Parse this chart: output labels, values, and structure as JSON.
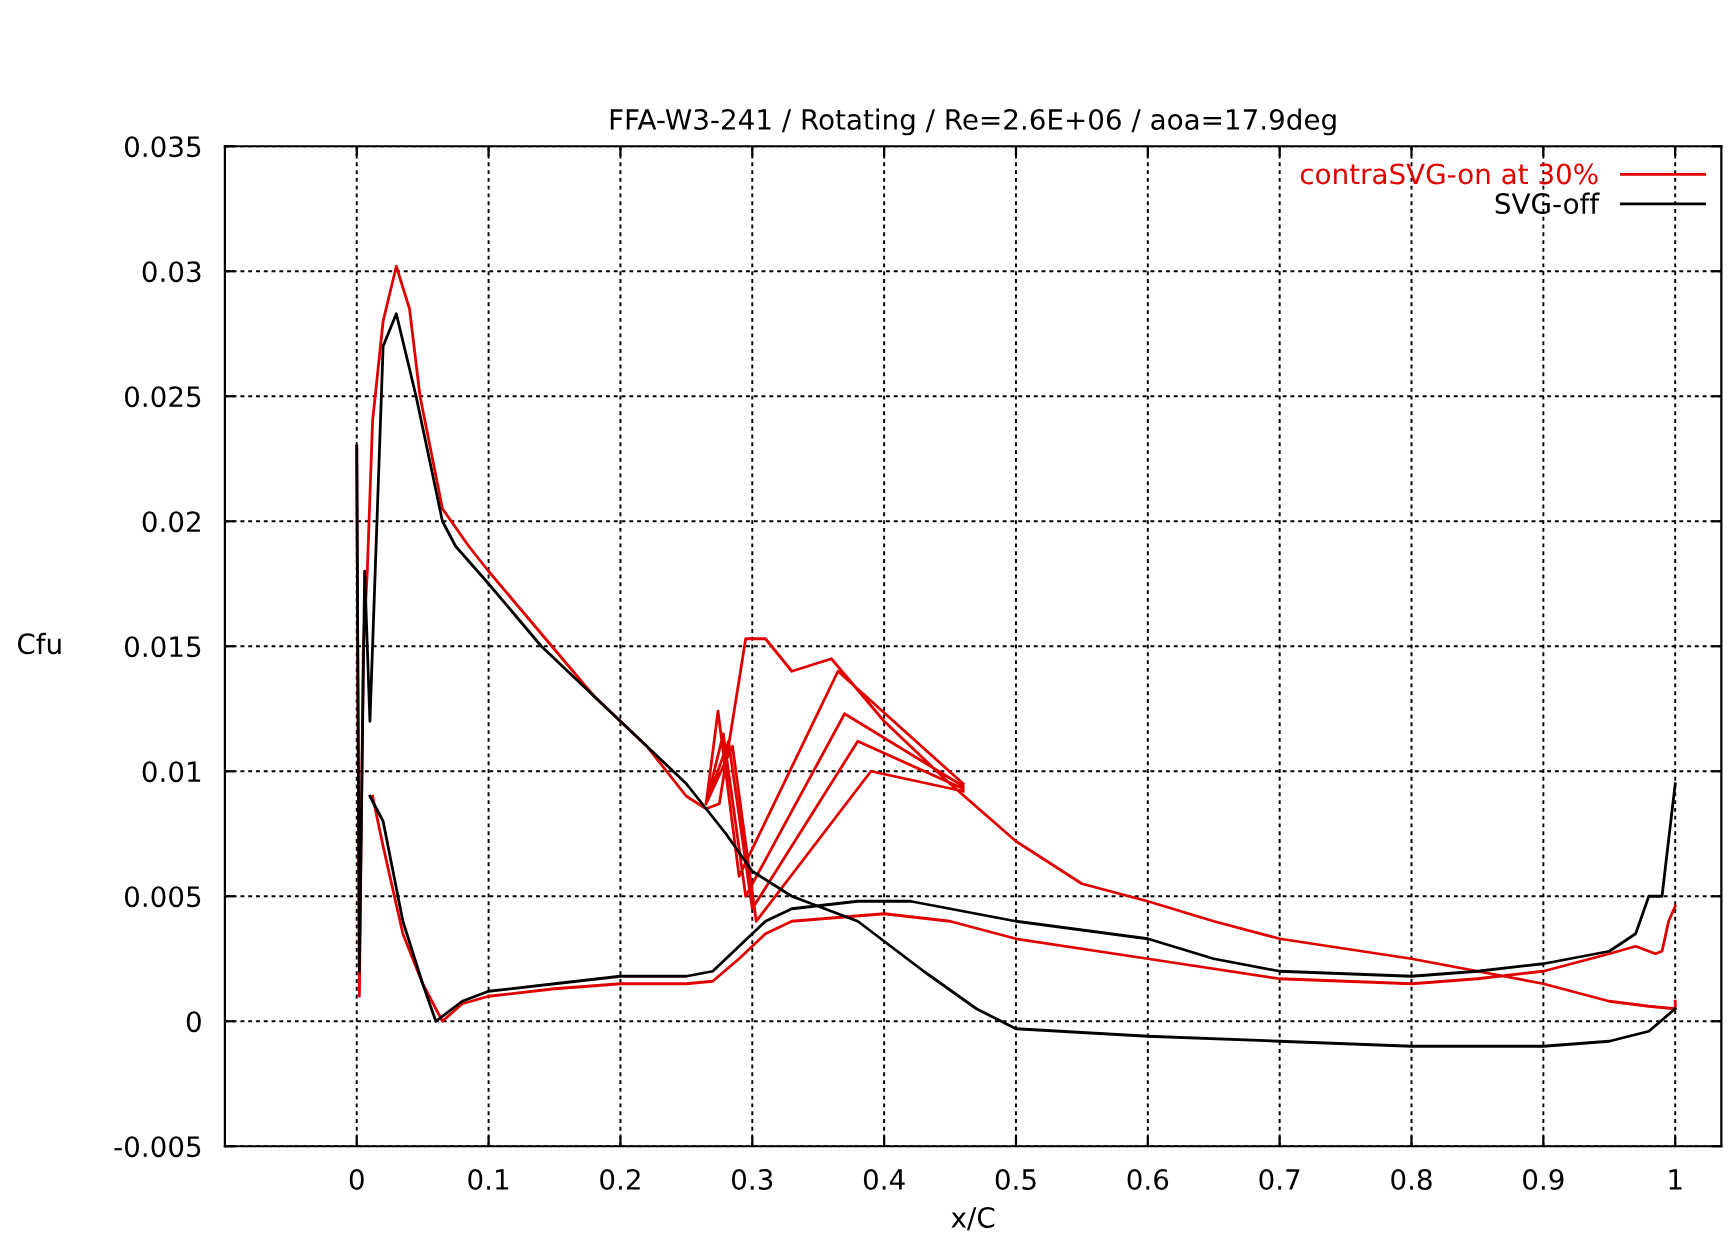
{
  "chart_data": {
    "type": "line",
    "title": "FFA-W3-241 / Rotating / Re=2.6E+06 / aoa=17.9deg",
    "xlabel": "x/C",
    "ylabel": "Cfu",
    "xlim": [
      -0.1,
      1.035
    ],
    "ylim": [
      -0.005,
      0.035
    ],
    "xticks": [
      0,
      0.1,
      0.2,
      0.3,
      0.4,
      0.5,
      0.6,
      0.7,
      0.8,
      0.9,
      1
    ],
    "yticks": [
      -0.005,
      0,
      0.005,
      0.01,
      0.015,
      0.02,
      0.025,
      0.03,
      0.035
    ],
    "grid": true,
    "legend": "top right",
    "line_style": "solid",
    "series": [
      {
        "name": "contraSVG-on at 30%",
        "color": "#e00000",
        "x": [
          0.0,
          0.002,
          0.005,
          0.008,
          0.012,
          0.02,
          0.03,
          0.04,
          0.048,
          0.065,
          0.085,
          0.1,
          0.14,
          0.18,
          0.22,
          0.25,
          0.265,
          0.275,
          0.295,
          0.31,
          0.33,
          0.36,
          0.4,
          0.45,
          0.5,
          0.55,
          0.6,
          0.65,
          0.7,
          0.8,
          0.9,
          0.95,
          0.98,
          1.0,
          1.0,
          null,
          0.265,
          0.274,
          0.29,
          0.365,
          0.46,
          null,
          0.265,
          0.278,
          0.295,
          0.37,
          0.46,
          null,
          0.265,
          0.282,
          0.3,
          0.38,
          0.46,
          null,
          0.265,
          0.285,
          0.303,
          0.39,
          0.46,
          null,
          0.012,
          0.02,
          0.035,
          0.05,
          0.065,
          0.08,
          0.1,
          0.15,
          0.2,
          0.25,
          0.27,
          0.29,
          0.31,
          0.33,
          0.4,
          0.45,
          0.5,
          0.6,
          0.7,
          0.8,
          0.85,
          0.9,
          0.95,
          0.97,
          0.985,
          0.99,
          0.995,
          1.0
        ],
        "values": [
          0.023,
          0.001,
          0.015,
          0.018,
          0.024,
          0.028,
          0.0302,
          0.0285,
          0.025,
          0.0205,
          0.019,
          0.018,
          0.0155,
          0.013,
          0.011,
          0.009,
          0.0085,
          0.0087,
          0.0153,
          0.0153,
          0.014,
          0.0145,
          0.012,
          0.0095,
          0.0072,
          0.0055,
          0.0048,
          0.004,
          0.0033,
          0.0025,
          0.0015,
          0.0008,
          0.0006,
          0.0005,
          0.0008,
          null,
          0.0087,
          0.0124,
          0.0058,
          0.014,
          0.0095,
          null,
          0.0087,
          0.0115,
          0.005,
          0.0123,
          0.0094,
          null,
          0.0087,
          0.0112,
          0.0045,
          0.0112,
          0.0093,
          null,
          0.0087,
          0.011,
          0.004,
          0.01,
          0.0092,
          null,
          0.009,
          0.007,
          0.0035,
          0.0015,
          0.0,
          0.0007,
          0.001,
          0.0013,
          0.0015,
          0.0015,
          0.0016,
          0.0025,
          0.0035,
          0.004,
          0.0043,
          0.004,
          0.0033,
          0.0025,
          0.0017,
          0.0015,
          0.0017,
          0.002,
          0.0027,
          0.003,
          0.0027,
          0.0028,
          0.004,
          0.0046
        ]
      },
      {
        "name": "SVG-off",
        "color": "#000000",
        "x": [
          0.0,
          0.002,
          0.006,
          0.01,
          0.02,
          0.03,
          0.045,
          0.065,
          0.075,
          0.1,
          0.14,
          0.18,
          0.22,
          0.25,
          0.28,
          0.3,
          0.33,
          0.38,
          0.43,
          0.47,
          0.5,
          0.6,
          0.7,
          0.8,
          0.9,
          0.95,
          0.98,
          1.0,
          null,
          0.01,
          0.02,
          0.035,
          0.05,
          0.06,
          0.08,
          0.1,
          0.15,
          0.2,
          0.25,
          0.27,
          0.29,
          0.31,
          0.33,
          0.38,
          0.42,
          0.45,
          0.5,
          0.6,
          0.65,
          0.7,
          0.8,
          0.85,
          0.9,
          0.95,
          0.97,
          0.98,
          0.99,
          1.0
        ],
        "values": [
          0.023,
          0.002,
          0.018,
          0.012,
          0.027,
          0.0283,
          0.025,
          0.02,
          0.019,
          0.0175,
          0.015,
          0.013,
          0.011,
          0.0095,
          0.0075,
          0.006,
          0.005,
          0.004,
          0.002,
          0.0005,
          -0.0003,
          -0.0006,
          -0.0008,
          -0.001,
          -0.001,
          -0.0008,
          -0.0004,
          0.0005,
          null,
          0.009,
          0.008,
          0.004,
          0.0015,
          0.0,
          0.0008,
          0.0012,
          0.0015,
          0.0018,
          0.0018,
          0.002,
          0.003,
          0.004,
          0.0045,
          0.0048,
          0.0048,
          0.0045,
          0.004,
          0.0033,
          0.0025,
          0.002,
          0.0018,
          0.002,
          0.0023,
          0.0028,
          0.0035,
          0.005,
          0.005,
          0.0095
        ]
      }
    ]
  }
}
